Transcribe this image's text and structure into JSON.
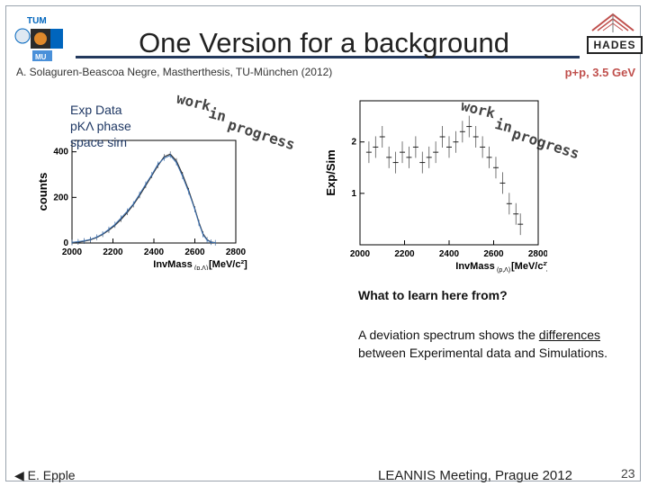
{
  "slide": {
    "title": "One Version for a background",
    "subtitle": "A. Solaguren-Beascoa Negre, Mastherthesis, TU-München (2012)",
    "reaction": "p+p, 3.5 GeV",
    "legend_lines": [
      "Exp Data",
      "pKΛ phase",
      "space sim"
    ],
    "wip_left": [
      "work",
      "in",
      "progress"
    ],
    "wip_right": [
      "work",
      "in",
      "progress"
    ],
    "question": "What to learn here from?",
    "answer_pre": "A deviation spectrum shows the ",
    "answer_link": "differences",
    "answer_post": " between Experimental data and Simulations.",
    "footer_author": "E. Epple",
    "footer_event": "LEANNIS Meeting, Prague 2012",
    "page_number": "23",
    "logos": [
      "tum-logo",
      "tum-seal",
      "hades-logo"
    ],
    "hades_label": "HADES"
  },
  "chart_data": [
    {
      "type": "line",
      "ylabel": "counts",
      "xlabel": "InvMass",
      "xlabel_sub": "(p,Λ)",
      "xunit": "[MeV/c²]",
      "xlim": [
        2000,
        2800
      ],
      "ylim": [
        0,
        450
      ],
      "xticks": [
        2000,
        2200,
        2400,
        2600,
        2800
      ],
      "yticks": [
        0,
        200,
        400
      ],
      "series": [
        {
          "x": [
            2000,
            2030,
            2060,
            2090,
            2120,
            2150,
            2180,
            2210,
            2240,
            2270,
            2300,
            2330,
            2360,
            2390,
            2420,
            2450,
            2480,
            2510,
            2540,
            2570,
            2600,
            2620,
            2640,
            2660,
            2680,
            2700
          ],
          "values": [
            2,
            4,
            8,
            14,
            24,
            38,
            56,
            78,
            104,
            134,
            168,
            208,
            252,
            296,
            340,
            378,
            390,
            360,
            300,
            230,
            150,
            90,
            40,
            14,
            4,
            1
          ]
        },
        {
          "x": [
            2000,
            2030,
            2060,
            2090,
            2120,
            2150,
            2180,
            2210,
            2240,
            2270,
            2300,
            2330,
            2360,
            2390,
            2420,
            2450,
            2480,
            2510,
            2540,
            2570,
            2600,
            2620,
            2640,
            2660,
            2680,
            2700
          ],
          "values": [
            3,
            6,
            10,
            16,
            26,
            40,
            60,
            82,
            110,
            140,
            172,
            214,
            258,
            300,
            346,
            372,
            384,
            352,
            292,
            224,
            146,
            86,
            36,
            12,
            3,
            1
          ]
        }
      ]
    },
    {
      "type": "scatter",
      "ylabel": "Exp/Sim",
      "xlabel": "InvMass",
      "xlabel_sub": "(p,Λ)",
      "xunit": "[MeV/c²]",
      "xlim": [
        2000,
        2800
      ],
      "ylim": [
        0,
        2.8
      ],
      "xticks": [
        2000,
        2200,
        2400,
        2600,
        2800
      ],
      "yticks": [
        1,
        2
      ],
      "series": [
        {
          "x": [
            2040,
            2070,
            2100,
            2130,
            2160,
            2190,
            2220,
            2250,
            2280,
            2310,
            2340,
            2370,
            2400,
            2430,
            2460,
            2490,
            2520,
            2550,
            2580,
            2610,
            2640,
            2670,
            2700,
            2720
          ],
          "values": [
            1.8,
            1.9,
            2.1,
            1.7,
            1.6,
            1.8,
            1.7,
            1.9,
            1.6,
            1.7,
            1.8,
            2.1,
            1.9,
            2.0,
            2.2,
            2.3,
            2.1,
            1.9,
            1.7,
            1.5,
            1.2,
            0.8,
            0.6,
            0.4
          ]
        }
      ]
    }
  ]
}
